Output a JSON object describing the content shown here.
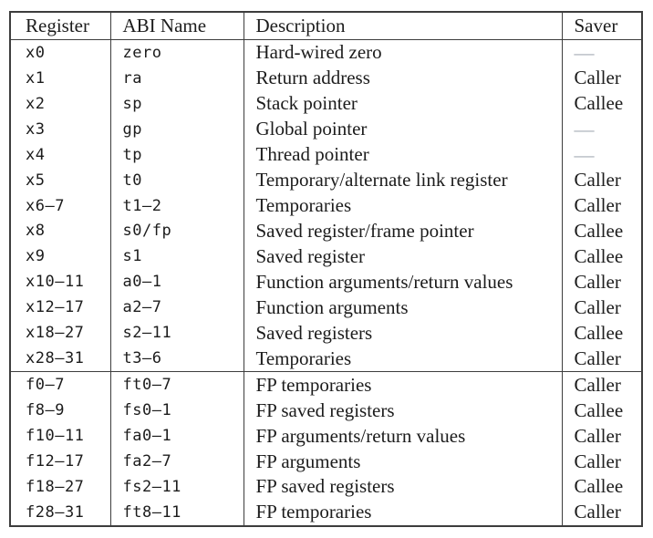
{
  "table": {
    "dash_symbol": "—",
    "columns": [
      {
        "key": "register",
        "label": "Register"
      },
      {
        "key": "abi",
        "label": "ABI Name"
      },
      {
        "key": "description",
        "label": "Description"
      },
      {
        "key": "saver",
        "label": "Saver"
      }
    ],
    "sections": [
      {
        "name": "integer-registers",
        "rows": [
          {
            "register": "x0",
            "abi": "zero",
            "description": "Hard-wired zero",
            "saver": "—"
          },
          {
            "register": "x1",
            "abi": "ra",
            "description": "Return address",
            "saver": "Caller"
          },
          {
            "register": "x2",
            "abi": "sp",
            "description": "Stack pointer",
            "saver": "Callee"
          },
          {
            "register": "x3",
            "abi": "gp",
            "description": "Global pointer",
            "saver": "—"
          },
          {
            "register": "x4",
            "abi": "tp",
            "description": "Thread pointer",
            "saver": "—"
          },
          {
            "register": "x5",
            "abi": "t0",
            "description": "Temporary/alternate link register",
            "saver": "Caller"
          },
          {
            "register": "x6–7",
            "abi": "t1–2",
            "description": "Temporaries",
            "saver": "Caller"
          },
          {
            "register": "x8",
            "abi": "s0/fp",
            "description": "Saved register/frame pointer",
            "saver": "Callee"
          },
          {
            "register": "x9",
            "abi": "s1",
            "description": "Saved register",
            "saver": "Callee"
          },
          {
            "register": "x10–11",
            "abi": "a0–1",
            "description": "Function arguments/return values",
            "saver": "Caller"
          },
          {
            "register": "x12–17",
            "abi": "a2–7",
            "description": "Function arguments",
            "saver": "Caller"
          },
          {
            "register": "x18–27",
            "abi": "s2–11",
            "description": "Saved registers",
            "saver": "Callee"
          },
          {
            "register": "x28–31",
            "abi": "t3–6",
            "description": "Temporaries",
            "saver": "Caller"
          }
        ]
      },
      {
        "name": "fp-registers",
        "rows": [
          {
            "register": "f0–7",
            "abi": "ft0–7",
            "description": "FP temporaries",
            "saver": "Caller"
          },
          {
            "register": "f8–9",
            "abi": "fs0–1",
            "description": "FP saved registers",
            "saver": "Callee"
          },
          {
            "register": "f10–11",
            "abi": "fa0–1",
            "description": "FP arguments/return values",
            "saver": "Caller"
          },
          {
            "register": "f12–17",
            "abi": "fa2–7",
            "description": "FP arguments",
            "saver": "Caller"
          },
          {
            "register": "f18–27",
            "abi": "fs2–11",
            "description": "FP saved registers",
            "saver": "Callee"
          },
          {
            "register": "f28–31",
            "abi": "ft8–11",
            "description": "FP temporaries",
            "saver": "Caller"
          }
        ]
      }
    ]
  },
  "colors": {
    "background": "#ffffff",
    "text": "#1c1c1c",
    "rule": "#3d3d3d",
    "dash": "#a6adb5"
  }
}
